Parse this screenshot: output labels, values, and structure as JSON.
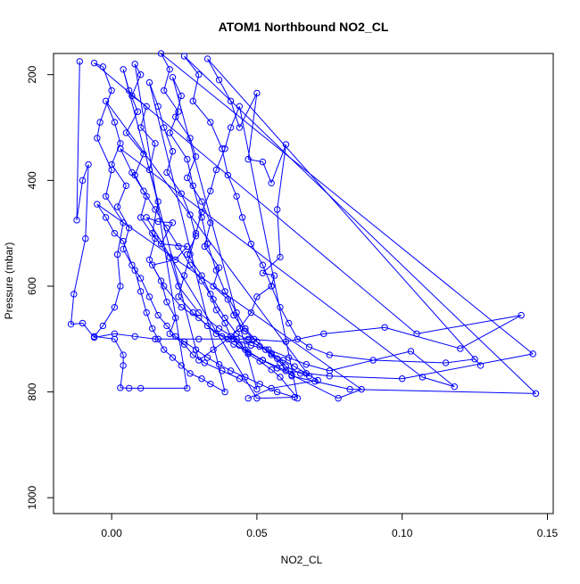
{
  "chart_data": {
    "type": "scatter",
    "title": "ATOM1 Northbound NO2_CL",
    "xlabel": "NO2_CL",
    "ylabel": "Pressure (mbar)",
    "xlim": [
      -0.02,
      0.152
    ],
    "ylim": [
      1030,
      160
    ],
    "y_reversed": true,
    "xticks": [
      0.0,
      0.05,
      0.1,
      0.15
    ],
    "xtick_labels": [
      "0.00",
      "0.05",
      "0.10",
      "0.15"
    ],
    "yticks": [
      200,
      400,
      600,
      800,
      1000
    ],
    "ytick_labels": [
      "200",
      "400",
      "600",
      "800",
      "1000"
    ],
    "grid": false,
    "legend": "none",
    "series": [
      {
        "color": "#0000ff",
        "marker": "open-circle",
        "points": [
          [
            -0.011,
            175
          ],
          [
            -0.012,
            475
          ],
          [
            -0.01,
            400
          ],
          [
            -0.008,
            370
          ],
          [
            -0.009,
            510
          ],
          [
            -0.013,
            615
          ],
          [
            -0.014,
            672
          ],
          [
            -0.01,
            670
          ],
          [
            -0.006,
            697
          ],
          [
            0.001,
            690
          ],
          [
            0.008,
            695
          ],
          [
            0.015,
            700
          ],
          [
            0.03,
            700
          ],
          [
            0.047,
            700
          ],
          [
            0.06,
            705
          ],
          [
            0.073,
            690
          ],
          [
            0.094,
            678
          ],
          [
            0.12,
            718
          ],
          [
            0.141,
            655
          ],
          [
            0.105,
            690
          ],
          [
            -0.006,
            178
          ],
          [
            -0.003,
            185
          ],
          [
            0.0,
            230
          ],
          [
            -0.004,
            290
          ],
          [
            -0.005,
            320
          ],
          [
            0.0,
            380
          ],
          [
            -0.002,
            430
          ],
          [
            0.004,
            480
          ],
          [
            0.002,
            540
          ],
          [
            0.003,
            600
          ],
          [
            0.001,
            640
          ],
          [
            -0.003,
            675
          ],
          [
            -0.006,
            695
          ],
          [
            0.001,
            700
          ],
          [
            0.004,
            730
          ],
          [
            0.004,
            750
          ],
          [
            0.003,
            792
          ],
          [
            0.006,
            793
          ],
          [
            0.01,
            793
          ],
          [
            0.026,
            793
          ],
          [
            0.008,
            180
          ],
          [
            0.01,
            200
          ],
          [
            0.007,
            240
          ],
          [
            0.012,
            260
          ],
          [
            0.01,
            300
          ],
          [
            0.015,
            330
          ],
          [
            0.013,
            380
          ],
          [
            0.016,
            440
          ],
          [
            0.014,
            500
          ],
          [
            0.02,
            545
          ],
          [
            0.023,
            600
          ],
          [
            0.03,
            650
          ],
          [
            0.037,
            680
          ],
          [
            0.043,
            700
          ],
          [
            0.046,
            720
          ],
          [
            0.052,
            740
          ],
          [
            0.06,
            760
          ],
          [
            0.075,
            770
          ],
          [
            0.1,
            775
          ],
          [
            0.145,
            728
          ],
          [
            0.017,
            160
          ],
          [
            0.02,
            190
          ],
          [
            0.018,
            230
          ],
          [
            0.023,
            270
          ],
          [
            0.02,
            310
          ],
          [
            0.026,
            360
          ],
          [
            0.028,
            410
          ],
          [
            0.031,
            470
          ],
          [
            0.033,
            520
          ],
          [
            0.036,
            570
          ],
          [
            0.039,
            610
          ],
          [
            0.043,
            650
          ],
          [
            0.046,
            680
          ],
          [
            0.05,
            705
          ],
          [
            0.055,
            730
          ],
          [
            0.058,
            745
          ],
          [
            0.062,
            770
          ],
          [
            0.07,
            780
          ],
          [
            0.082,
            795
          ],
          [
            0.146,
            803
          ],
          [
            0.025,
            165
          ],
          [
            0.03,
            200
          ],
          [
            0.028,
            250
          ],
          [
            0.034,
            290
          ],
          [
            0.038,
            340
          ],
          [
            0.04,
            390
          ],
          [
            0.043,
            430
          ],
          [
            0.045,
            470
          ],
          [
            0.048,
            520
          ],
          [
            0.052,
            560
          ],
          [
            0.055,
            600
          ],
          [
            0.058,
            640
          ],
          [
            0.061,
            670
          ],
          [
            0.064,
            700
          ],
          [
            0.068,
            715
          ],
          [
            0.075,
            730
          ],
          [
            0.09,
            740
          ],
          [
            0.115,
            745
          ],
          [
            0.125,
            738
          ],
          [
            0.127,
            750
          ],
          [
            0.033,
            170
          ],
          [
            0.037,
            210
          ],
          [
            0.041,
            250
          ],
          [
            0.044,
            300
          ],
          [
            0.05,
            235
          ],
          [
            0.047,
            360
          ],
          [
            0.052,
            365
          ],
          [
            0.055,
            405
          ],
          [
            0.06,
            332
          ],
          [
            0.057,
            455
          ],
          [
            0.058,
            545
          ],
          [
            0.052,
            575
          ],
          [
            0.056,
            580
          ],
          [
            0.055,
            600
          ],
          [
            0.05,
            620
          ],
          [
            0.048,
            650
          ],
          [
            0.044,
            680
          ],
          [
            0.04,
            700
          ],
          [
            0.035,
            720
          ],
          [
            0.03,
            740
          ],
          [
            0.004,
            190
          ],
          [
            0.006,
            230
          ],
          [
            0.009,
            270
          ],
          [
            0.005,
            310
          ],
          [
            0.011,
            350
          ],
          [
            0.008,
            390
          ],
          [
            0.012,
            430
          ],
          [
            0.01,
            470
          ],
          [
            0.015,
            510
          ],
          [
            0.013,
            550
          ],
          [
            0.017,
            590
          ],
          [
            0.019,
            630
          ],
          [
            0.022,
            660
          ],
          [
            0.02,
            690
          ],
          [
            0.025,
            710
          ],
          [
            0.028,
            730
          ],
          [
            0.032,
            745
          ],
          [
            0.038,
            760
          ],
          [
            0.044,
            775
          ],
          [
            0.05,
            795
          ],
          [
            0.021,
            205
          ],
          [
            0.024,
            240
          ],
          [
            0.022,
            280
          ],
          [
            0.027,
            320
          ],
          [
            0.029,
            355
          ],
          [
            0.026,
            395
          ],
          [
            0.031,
            440
          ],
          [
            0.034,
            480
          ],
          [
            0.032,
            525
          ],
          [
            0.037,
            565
          ],
          [
            0.035,
            600
          ],
          [
            0.04,
            625
          ],
          [
            0.042,
            655
          ],
          [
            0.046,
            685
          ],
          [
            0.049,
            700
          ],
          [
            0.053,
            720
          ],
          [
            0.057,
            737
          ],
          [
            0.06,
            752
          ],
          [
            0.065,
            765
          ],
          [
            0.068,
            770
          ],
          [
            -0.002,
            250
          ],
          [
            0.001,
            290
          ],
          [
            0.003,
            330
          ],
          [
            0.0,
            370
          ],
          [
            0.005,
            410
          ],
          [
            0.002,
            450
          ],
          [
            0.006,
            490
          ],
          [
            0.004,
            530
          ],
          [
            0.008,
            570
          ],
          [
            0.01,
            610
          ],
          [
            0.012,
            650
          ],
          [
            0.014,
            680
          ],
          [
            0.016,
            700
          ],
          [
            0.018,
            720
          ],
          [
            0.021,
            735
          ],
          [
            0.024,
            750
          ],
          [
            0.027,
            765
          ],
          [
            0.031,
            775
          ],
          [
            0.034,
            785
          ],
          [
            0.039,
            800
          ],
          [
            0.013,
            215
          ],
          [
            0.016,
            260
          ],
          [
            0.018,
            300
          ],
          [
            0.021,
            345
          ],
          [
            0.019,
            385
          ],
          [
            0.024,
            425
          ],
          [
            0.027,
            465
          ],
          [
            0.029,
            505
          ],
          [
            0.026,
            540
          ],
          [
            0.031,
            580
          ],
          [
            0.034,
            615
          ],
          [
            0.036,
            645
          ],
          [
            0.039,
            670
          ],
          [
            0.041,
            695
          ],
          [
            0.044,
            712
          ],
          [
            0.047,
            728
          ],
          [
            0.051,
            742
          ],
          [
            0.055,
            758
          ],
          [
            0.058,
            772
          ],
          [
            0.064,
            812
          ],
          [
            0.044,
            260
          ],
          [
            0.041,
            300
          ],
          [
            0.039,
            340
          ],
          [
            0.036,
            380
          ],
          [
            0.034,
            420
          ],
          [
            0.031,
            460
          ],
          [
            0.029,
            500
          ],
          [
            0.027,
            540
          ],
          [
            0.025,
            580
          ],
          [
            0.023,
            620
          ],
          [
            0.028,
            650
          ],
          [
            0.033,
            675
          ],
          [
            0.038,
            695
          ],
          [
            0.042,
            710
          ],
          [
            0.047,
            725
          ],
          [
            0.052,
            740
          ],
          [
            0.057,
            755
          ],
          [
            0.062,
            768
          ],
          [
            0.078,
            812
          ],
          [
            0.086,
            795
          ],
          [
            -0.005,
            445
          ],
          [
            -0.002,
            470
          ],
          [
            0.001,
            500
          ],
          [
            0.004,
            515
          ],
          [
            0.007,
            560
          ],
          [
            0.01,
            585
          ],
          [
            0.013,
            620
          ],
          [
            0.016,
            655
          ],
          [
            0.019,
            675
          ],
          [
            0.022,
            695
          ],
          [
            0.025,
            705
          ],
          [
            0.029,
            720
          ],
          [
            0.033,
            735
          ],
          [
            0.037,
            748
          ],
          [
            0.041,
            760
          ],
          [
            0.046,
            772
          ],
          [
            0.051,
            785
          ],
          [
            0.057,
            800
          ],
          [
            0.063,
            810
          ],
          [
            0.05,
            812
          ],
          [
            0.012,
            470
          ],
          [
            0.016,
            478
          ],
          [
            0.021,
            480
          ],
          [
            0.017,
            520
          ],
          [
            0.026,
            525
          ],
          [
            0.022,
            550
          ],
          [
            0.014,
            560
          ],
          [
            0.018,
            600
          ],
          [
            0.024,
            640
          ],
          [
            0.03,
            660
          ],
          [
            0.036,
            690
          ],
          [
            0.042,
            700
          ],
          [
            0.048,
            712
          ],
          [
            0.054,
            720
          ],
          [
            0.061,
            735
          ],
          [
            0.067,
            748
          ],
          [
            0.075,
            760
          ],
          [
            0.103,
            723
          ],
          [
            0.118,
            790
          ],
          [
            0.107,
            772
          ],
          [
            0.003,
            340
          ],
          [
            0.007,
            385
          ],
          [
            0.011,
            420
          ],
          [
            0.015,
            455
          ],
          [
            0.019,
            490
          ],
          [
            0.023,
            525
          ],
          [
            0.027,
            560
          ],
          [
            0.031,
            590
          ],
          [
            0.035,
            625
          ],
          [
            0.039,
            660
          ],
          [
            0.043,
            690
          ],
          [
            0.047,
            702
          ],
          [
            0.051,
            714
          ],
          [
            0.055,
            727
          ],
          [
            0.059,
            740
          ],
          [
            0.063,
            752
          ],
          [
            0.067,
            765
          ],
          [
            0.071,
            778
          ],
          [
            0.055,
            793
          ],
          [
            0.047,
            812
          ]
        ]
      }
    ]
  }
}
